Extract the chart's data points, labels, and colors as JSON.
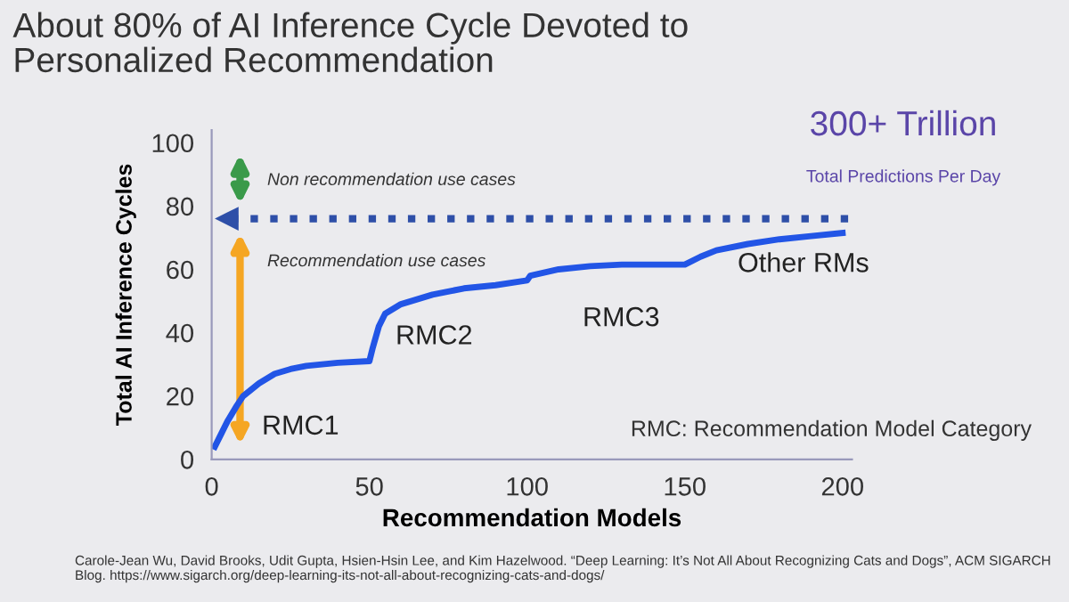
{
  "chart_data": {
    "type": "line",
    "title": "About 80% of AI Inference Cycle Devoted to\nPersonalized Recommendation",
    "xlabel": "Recommendation Models",
    "ylabel": "Total AI Inference Cycles",
    "series": [
      {
        "color": "#2255e6",
        "x": [
          1,
          3,
          5,
          8,
          10,
          15,
          20,
          25,
          30,
          40,
          50,
          51,
          53,
          55,
          60,
          70,
          80,
          90,
          100,
          101,
          110,
          120,
          130,
          140,
          150,
          155,
          160,
          170,
          180,
          190,
          200
        ],
        "values": [
          4,
          8,
          12,
          17,
          20,
          24,
          27,
          28.5,
          29.5,
          30.5,
          31,
          35,
          42,
          46,
          49,
          52,
          54,
          55,
          56.5,
          58,
          60,
          61,
          61.5,
          61.5,
          61.5,
          64,
          66,
          68,
          69.5,
          70.5,
          71.5
        ]
      }
    ],
    "xlim": [
      0,
      203
    ],
    "ylim": [
      0,
      104
    ],
    "xticks": [
      0,
      50,
      100,
      150,
      200
    ],
    "yticks": [
      0,
      20,
      40,
      60,
      80,
      100
    ],
    "ref_lines": [
      {
        "axis": "y",
        "value": 76,
        "color": "#2e4fa8",
        "line_style": "dotted"
      }
    ],
    "grid": false,
    "legend": false,
    "marker": "none",
    "line_style": "solid",
    "annotations": [
      "RMC1",
      "RMC2",
      "RMC3",
      "Other RMs",
      "Non recommendation use cases",
      "Recommendation use cases",
      "RMC: Recommendation Model Category",
      "300+ Trillion",
      "Total Predictions Per Day",
      "Carole-Jean Wu, David Brooks, Udit Gupta, Hsien-Hsin Lee, and Kim Hazelwood. “Deep Learning: It’s Not All About Recognizing Cats and Dogs”, ACM SIGARCH Blog. https://www.sigarch.org/deep-learning-its-not-all-about-recognizing-cats-and-dogs/"
    ]
  }
}
